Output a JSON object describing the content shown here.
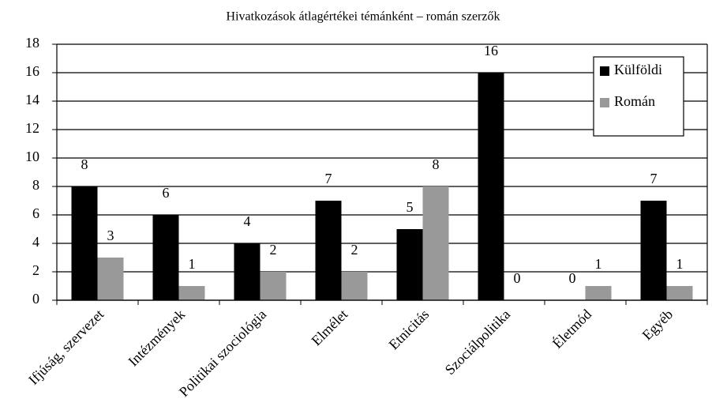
{
  "chart_data": {
    "type": "bar",
    "title": "Hivatkozások átlagértékei témánként – román szerzők",
    "categories": [
      "Ifjúság, szervezet",
      "Intézmények",
      "Politikai szociológia",
      "Elmélet",
      "Etnicitás",
      "Szociálpolitika",
      "Életmód",
      "Egyéb"
    ],
    "series": [
      {
        "name": "Külföldi",
        "color": "#000000",
        "values": [
          8,
          6,
          4,
          7,
          5,
          16,
          0,
          7
        ]
      },
      {
        "name": "Román",
        "color": "#999999",
        "values": [
          3,
          1,
          2,
          2,
          8,
          0,
          1,
          1
        ]
      }
    ],
    "ylim": [
      0,
      18
    ],
    "yticks": [
      0,
      2,
      4,
      6,
      8,
      10,
      12,
      14,
      16,
      18
    ],
    "grid": true,
    "legend": "upper right"
  }
}
